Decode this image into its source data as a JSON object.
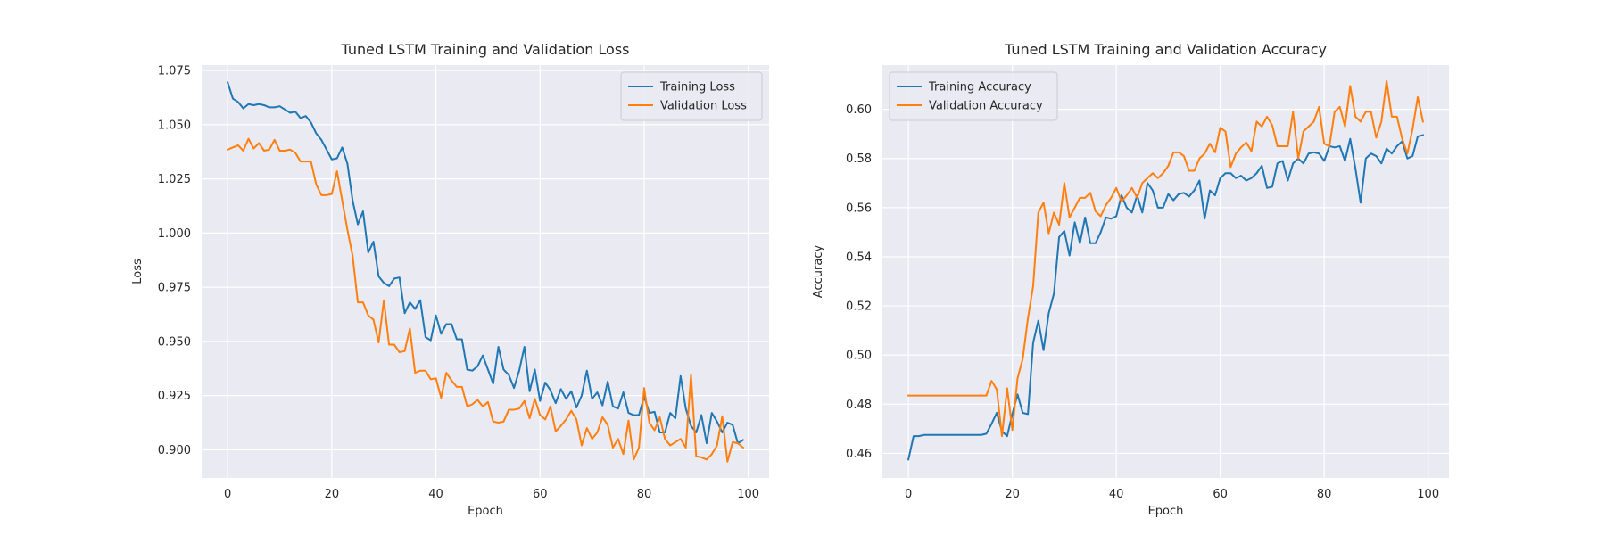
{
  "chart_data": [
    {
      "type": "line",
      "title": "Tuned LSTM Training and Validation Loss",
      "xlabel": "Epoch",
      "ylabel": "Loss",
      "xlim": [
        -5,
        104
      ],
      "ylim": [
        0.887,
        1.0775
      ],
      "xticks": [
        0,
        20,
        40,
        60,
        80,
        100
      ],
      "yticks": [
        0.9,
        0.925,
        0.95,
        0.975,
        1.0,
        1.025,
        1.05,
        1.075
      ],
      "ytick_decimals": 3,
      "grid": true,
      "legend": "top-right",
      "series": [
        {
          "name": "Training Loss",
          "color": "#1f77b4",
          "x": [
            0,
            1,
            2,
            3,
            4,
            5,
            6,
            7,
            8,
            9,
            10,
            11,
            12,
            13,
            14,
            15,
            16,
            17,
            18,
            19,
            20,
            21,
            22,
            23,
            24,
            25,
            26,
            27,
            28,
            29,
            30,
            31,
            32,
            33,
            34,
            35,
            36,
            37,
            38,
            39,
            40,
            41,
            42,
            43,
            44,
            45,
            46,
            47,
            48,
            49,
            50,
            51,
            52,
            53,
            54,
            55,
            56,
            57,
            58,
            59,
            60,
            61,
            62,
            63,
            64,
            65,
            66,
            67,
            68,
            69,
            70,
            71,
            72,
            73,
            74,
            75,
            76,
            77,
            78,
            79,
            80,
            81,
            82,
            83,
            84,
            85,
            86,
            87,
            88,
            89,
            90,
            91,
            92,
            93,
            94,
            95,
            96,
            97,
            98,
            99
          ],
          "values": [
            1.0695,
            1.062,
            1.0605,
            1.0575,
            1.0595,
            1.059,
            1.0595,
            1.059,
            1.058,
            1.058,
            1.0585,
            1.057,
            1.0555,
            1.056,
            1.053,
            1.054,
            1.051,
            1.046,
            1.043,
            1.0385,
            1.034,
            1.0345,
            1.0395,
            1.032,
            1.015,
            1.004,
            1.01,
            0.991,
            0.996,
            0.98,
            0.977,
            0.9755,
            0.979,
            0.9795,
            0.963,
            0.968,
            0.965,
            0.969,
            0.952,
            0.9505,
            0.962,
            0.9535,
            0.958,
            0.958,
            0.951,
            0.951,
            0.937,
            0.9365,
            0.9385,
            0.9435,
            0.937,
            0.9305,
            0.9475,
            0.937,
            0.9345,
            0.9285,
            0.9365,
            0.9475,
            0.927,
            0.937,
            0.9225,
            0.931,
            0.9275,
            0.9215,
            0.928,
            0.9235,
            0.927,
            0.9195,
            0.925,
            0.9365,
            0.9235,
            0.9265,
            0.9205,
            0.9315,
            0.92,
            0.919,
            0.9265,
            0.917,
            0.916,
            0.916,
            0.9245,
            0.917,
            0.9175,
            0.908,
            0.908,
            0.917,
            0.9145,
            0.934,
            0.919,
            0.911,
            0.908,
            0.916,
            0.903,
            0.917,
            0.913,
            0.908,
            0.9125,
            0.9115,
            0.903,
            0.9045
          ]
        },
        {
          "name": "Validation Loss",
          "color": "#ff7f0e",
          "x": [
            0,
            1,
            2,
            3,
            4,
            5,
            6,
            7,
            8,
            9,
            10,
            11,
            12,
            13,
            14,
            15,
            16,
            17,
            18,
            19,
            20,
            21,
            22,
            23,
            24,
            25,
            26,
            27,
            28,
            29,
            30,
            31,
            32,
            33,
            34,
            35,
            36,
            37,
            38,
            39,
            40,
            41,
            42,
            43,
            44,
            45,
            46,
            47,
            48,
            49,
            50,
            51,
            52,
            53,
            54,
            55,
            56,
            57,
            58,
            59,
            60,
            61,
            62,
            63,
            64,
            65,
            66,
            67,
            68,
            69,
            70,
            71,
            72,
            73,
            74,
            75,
            76,
            77,
            78,
            79,
            80,
            81,
            82,
            83,
            84,
            85,
            86,
            87,
            88,
            89,
            90,
            91,
            92,
            93,
            94,
            95,
            96,
            97,
            98,
            99
          ],
          "values": [
            1.0385,
            1.0395,
            1.0405,
            1.038,
            1.0435,
            1.039,
            1.0415,
            1.038,
            1.0385,
            1.043,
            1.038,
            1.038,
            1.0385,
            1.037,
            1.033,
            1.033,
            1.033,
            1.0225,
            1.0175,
            1.0175,
            1.018,
            1.0285,
            1.015,
            1.0015,
            0.9895,
            0.968,
            0.968,
            0.962,
            0.96,
            0.9495,
            0.969,
            0.9485,
            0.9485,
            0.945,
            0.9455,
            0.956,
            0.9355,
            0.9365,
            0.9365,
            0.9325,
            0.933,
            0.924,
            0.9355,
            0.932,
            0.929,
            0.929,
            0.92,
            0.921,
            0.923,
            0.92,
            0.922,
            0.913,
            0.9125,
            0.913,
            0.9185,
            0.9185,
            0.919,
            0.9225,
            0.9145,
            0.9235,
            0.916,
            0.914,
            0.92,
            0.9085,
            0.911,
            0.914,
            0.918,
            0.914,
            0.902,
            0.91,
            0.905,
            0.908,
            0.915,
            0.9115,
            0.901,
            0.905,
            0.898,
            0.9135,
            0.8955,
            0.901,
            0.9285,
            0.9125,
            0.909,
            0.915,
            0.905,
            0.902,
            0.9035,
            0.905,
            0.901,
            0.9345,
            0.897,
            0.8965,
            0.8955,
            0.898,
            0.902,
            0.9155,
            0.8945,
            0.9035,
            0.903,
            0.901
          ]
        }
      ]
    },
    {
      "type": "line",
      "title": "Tuned LSTM Training and Validation Accuracy",
      "xlabel": "Epoch",
      "ylabel": "Accuracy",
      "xlim": [
        -5,
        104
      ],
      "ylim": [
        0.45,
        0.618
      ],
      "xticks": [
        0,
        20,
        40,
        60,
        80,
        100
      ],
      "yticks": [
        0.46,
        0.48,
        0.5,
        0.52,
        0.54,
        0.56,
        0.58,
        0.6
      ],
      "ytick_decimals": 2,
      "grid": true,
      "legend": "top-left",
      "series": [
        {
          "name": "Training Accuracy",
          "color": "#1f77b4",
          "x": [
            0,
            1,
            2,
            3,
            4,
            5,
            6,
            7,
            8,
            9,
            10,
            11,
            12,
            13,
            14,
            15,
            16,
            17,
            18,
            19,
            20,
            21,
            22,
            23,
            24,
            25,
            26,
            27,
            28,
            29,
            30,
            31,
            32,
            33,
            34,
            35,
            36,
            37,
            38,
            39,
            40,
            41,
            42,
            43,
            44,
            45,
            46,
            47,
            48,
            49,
            50,
            51,
            52,
            53,
            54,
            55,
            56,
            57,
            58,
            59,
            60,
            61,
            62,
            63,
            64,
            65,
            66,
            67,
            68,
            69,
            70,
            71,
            72,
            73,
            74,
            75,
            76,
            77,
            78,
            79,
            80,
            81,
            82,
            83,
            84,
            85,
            86,
            87,
            88,
            89,
            90,
            91,
            92,
            93,
            94,
            95,
            96,
            97,
            98,
            99
          ],
          "values": [
            0.4575,
            0.467,
            0.467,
            0.4675,
            0.4675,
            0.4675,
            0.4675,
            0.4675,
            0.4675,
            0.4675,
            0.4675,
            0.4675,
            0.4675,
            0.4675,
            0.4675,
            0.468,
            0.472,
            0.4765,
            0.469,
            0.467,
            0.476,
            0.484,
            0.4765,
            0.476,
            0.505,
            0.514,
            0.502,
            0.517,
            0.525,
            0.548,
            0.5505,
            0.5405,
            0.554,
            0.5455,
            0.556,
            0.5455,
            0.5455,
            0.55,
            0.556,
            0.5555,
            0.5565,
            0.565,
            0.56,
            0.558,
            0.565,
            0.558,
            0.57,
            0.567,
            0.56,
            0.56,
            0.5655,
            0.563,
            0.5655,
            0.566,
            0.5645,
            0.567,
            0.571,
            0.5555,
            0.567,
            0.565,
            0.572,
            0.574,
            0.574,
            0.572,
            0.573,
            0.571,
            0.572,
            0.574,
            0.577,
            0.568,
            0.5685,
            0.578,
            0.579,
            0.571,
            0.578,
            0.58,
            0.578,
            0.582,
            0.5825,
            0.582,
            0.579,
            0.585,
            0.5845,
            0.585,
            0.579,
            0.588,
            0.576,
            0.562,
            0.58,
            0.582,
            0.581,
            0.578,
            0.584,
            0.582,
            0.585,
            0.587,
            0.58,
            0.581,
            0.589,
            0.5895
          ]
        },
        {
          "name": "Validation Accuracy",
          "color": "#ff7f0e",
          "x": [
            0,
            1,
            2,
            3,
            4,
            5,
            6,
            7,
            8,
            9,
            10,
            11,
            12,
            13,
            14,
            15,
            16,
            17,
            18,
            19,
            20,
            21,
            22,
            23,
            24,
            25,
            26,
            27,
            28,
            29,
            30,
            31,
            32,
            33,
            34,
            35,
            36,
            37,
            38,
            39,
            40,
            41,
            42,
            43,
            44,
            45,
            46,
            47,
            48,
            49,
            50,
            51,
            52,
            53,
            54,
            55,
            56,
            57,
            58,
            59,
            60,
            61,
            62,
            63,
            64,
            65,
            66,
            67,
            68,
            69,
            70,
            71,
            72,
            73,
            74,
            75,
            76,
            77,
            78,
            79,
            80,
            81,
            82,
            83,
            84,
            85,
            86,
            87,
            88,
            89,
            90,
            91,
            92,
            93,
            94,
            95,
            96,
            97,
            98,
            99
          ],
          "values": [
            0.4835,
            0.4835,
            0.4835,
            0.4835,
            0.4835,
            0.4835,
            0.4835,
            0.4835,
            0.4835,
            0.4835,
            0.4835,
            0.4835,
            0.4835,
            0.4835,
            0.4835,
            0.4835,
            0.4895,
            0.486,
            0.467,
            0.4865,
            0.4695,
            0.4905,
            0.4985,
            0.515,
            0.528,
            0.558,
            0.562,
            0.5495,
            0.558,
            0.553,
            0.57,
            0.556,
            0.56,
            0.564,
            0.564,
            0.566,
            0.5585,
            0.5565,
            0.561,
            0.564,
            0.568,
            0.5625,
            0.565,
            0.568,
            0.564,
            0.57,
            0.572,
            0.574,
            0.572,
            0.574,
            0.577,
            0.5825,
            0.5825,
            0.581,
            0.575,
            0.575,
            0.58,
            0.582,
            0.586,
            0.5825,
            0.5925,
            0.591,
            0.5765,
            0.582,
            0.5845,
            0.5865,
            0.583,
            0.595,
            0.593,
            0.597,
            0.5935,
            0.585,
            0.585,
            0.585,
            0.599,
            0.58,
            0.591,
            0.593,
            0.595,
            0.601,
            0.586,
            0.585,
            0.599,
            0.601,
            0.593,
            0.6095,
            0.597,
            0.595,
            0.599,
            0.599,
            0.5885,
            0.595,
            0.6115,
            0.597,
            0.597,
            0.588,
            0.582,
            0.592,
            0.605,
            0.595
          ]
        }
      ]
    }
  ]
}
